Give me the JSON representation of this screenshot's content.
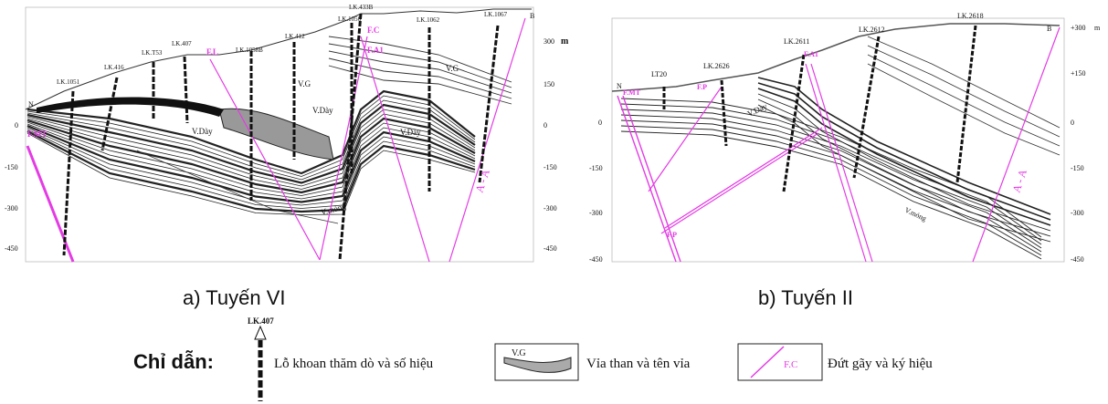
{
  "panels": [
    {
      "caption": "a) Tuyến VI",
      "boreholes": [
        "LK.1051",
        "LK.416",
        "LK.T53",
        "LK.407",
        "LK.1058B",
        "LK.412",
        "LK.433B",
        "LK.1056",
        "LK.1062",
        "LK.1067"
      ],
      "faults": [
        "F.MT",
        "F.L",
        "F.C",
        "F.A1"
      ],
      "seams": [
        "V.G",
        "V.G",
        "V.Dày",
        "V.Dày",
        "V.Dày",
        "V.mỏng"
      ],
      "ends": [
        "N",
        "B"
      ],
      "section_mark": "A - A",
      "right_axis": [
        "300",
        "150",
        "0",
        "-150",
        "-300",
        "-450"
      ],
      "axis_unit": "m",
      "left_axis": [
        "0",
        "-150",
        "-300",
        "-450"
      ]
    },
    {
      "caption": "b) Tuyến II",
      "boreholes": [
        "LT20",
        "LK.2626",
        "LK.2611",
        "LK.2612",
        "LK.2618"
      ],
      "faults": [
        "F.MT",
        "F.P",
        "F.A1",
        "F.P"
      ],
      "seams": [
        "V.Dày",
        "V.mỏng"
      ],
      "ends": [
        "N",
        "B"
      ],
      "section_mark": "A - A",
      "right_axis": [
        "+300",
        "+150",
        "0",
        "-150",
        "-300",
        "-450"
      ],
      "axis_unit": "m",
      "left_axis": [
        "0",
        "-150",
        "-300",
        "-450"
      ]
    }
  ],
  "legend": {
    "title": "Chỉ dẫn:",
    "borehole_label": "LK.407",
    "borehole_text": "Lỗ khoan thăm dò và số hiệu",
    "seam_label": "V.G",
    "seam_text": "Vỉa than và tên vỉa",
    "fault_label": "F.C",
    "fault_text": "Đứt gãy và ký hiệu"
  }
}
